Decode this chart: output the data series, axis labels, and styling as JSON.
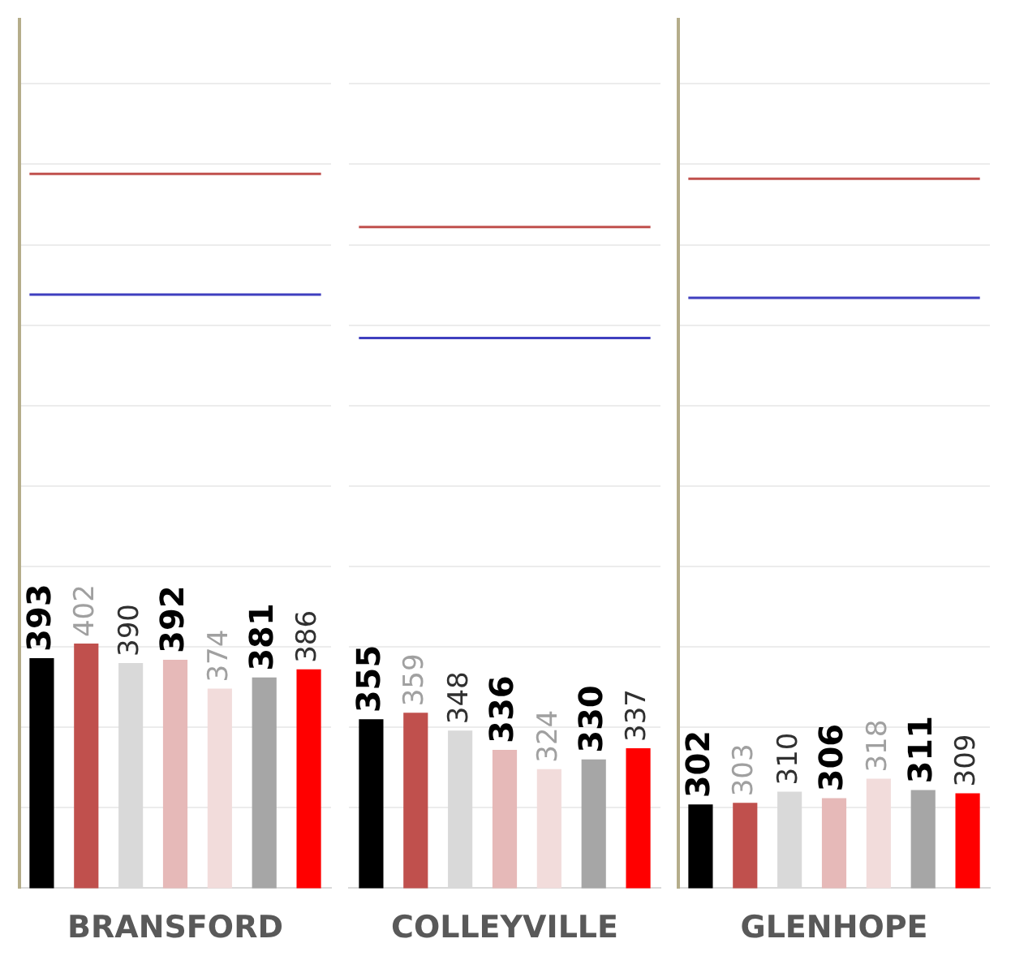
{
  "chart_data": [
    {
      "type": "bar",
      "xlabel": "BRANSFORD",
      "categories": [
        null,
        null,
        null,
        null,
        null,
        null,
        null
      ],
      "values": [
        393,
        402,
        390,
        392,
        374,
        381,
        386
      ],
      "colors": [
        "#000000",
        "#c0504d",
        "#d9d9d9",
        "#e6b9b8",
        "#f2dcdb",
        "#a6a6a6",
        "#ff0000"
      ],
      "data_labels": true,
      "ylim": [
        250,
        790
      ],
      "yticks": [
        {
          "value": 300,
          "label": null
        },
        {
          "value": 350,
          "label": null
        },
        {
          "value": 400,
          "label": null
        },
        {
          "value": 450,
          "label": null
        },
        {
          "value": 500,
          "label": null
        },
        {
          "value": 550,
          "label": null
        },
        {
          "value": 600,
          "label": null
        },
        {
          "value": 650,
          "label": null
        },
        {
          "value": 700,
          "label": null
        },
        {
          "value": 750,
          "label": null
        }
      ],
      "grid": "y",
      "tick_labels": false,
      "ref_lines": [
        {
          "axis": "y",
          "value": 694,
          "color": "#c0504d"
        },
        {
          "axis": "y",
          "value": 619,
          "color": "#3f3fbf"
        }
      ]
    },
    {
      "type": "bar",
      "xlabel": "COLLEYVILLE",
      "categories": [
        null,
        null,
        null,
        null,
        null,
        null,
        null
      ],
      "values": [
        355,
        359,
        348,
        336,
        324,
        330,
        337
      ],
      "colors": [
        "#000000",
        "#c0504d",
        "#d9d9d9",
        "#e6b9b8",
        "#f2dcdb",
        "#a6a6a6",
        "#ff0000"
      ],
      "data_labels": true,
      "ylim": [
        250,
        790
      ],
      "yticks": [
        {
          "value": 300,
          "label": null
        },
        {
          "value": 350,
          "label": null
        },
        {
          "value": 400,
          "label": null
        },
        {
          "value": 450,
          "label": null
        },
        {
          "value": 500,
          "label": null
        },
        {
          "value": 550,
          "label": null
        },
        {
          "value": 600,
          "label": null
        },
        {
          "value": 650,
          "label": null
        },
        {
          "value": 700,
          "label": null
        },
        {
          "value": 750,
          "label": null
        }
      ],
      "grid": "y",
      "tick_labels": false,
      "ref_lines": [
        {
          "axis": "y",
          "value": 661,
          "color": "#c0504d"
        },
        {
          "axis": "y",
          "value": 592,
          "color": "#3f3fbf"
        }
      ]
    },
    {
      "type": "bar",
      "xlabel": "GLENHOPE",
      "categories": [
        null,
        null,
        null,
        null,
        null,
        null,
        null
      ],
      "values": [
        302,
        303,
        310,
        306,
        318,
        311,
        309
      ],
      "colors": [
        "#000000",
        "#c0504d",
        "#d9d9d9",
        "#e6b9b8",
        "#f2dcdb",
        "#a6a6a6",
        "#ff0000"
      ],
      "data_labels": true,
      "ylim": [
        250,
        790
      ],
      "yticks": [
        {
          "value": 300,
          "label": null
        },
        {
          "value": 350,
          "label": null
        },
        {
          "value": 400,
          "label": null
        },
        {
          "value": 450,
          "label": null
        },
        {
          "value": 500,
          "label": null
        },
        {
          "value": 550,
          "label": null
        },
        {
          "value": 600,
          "label": null
        },
        {
          "value": 650,
          "label": null
        },
        {
          "value": 700,
          "label": null
        },
        {
          "value": 750,
          "label": null
        }
      ],
      "grid": "y",
      "tick_labels": false,
      "ref_lines": [
        {
          "axis": "y",
          "value": 691,
          "color": "#c0504d"
        },
        {
          "axis": "y",
          "value": 617,
          "color": "#3f3fbf"
        }
      ]
    }
  ]
}
